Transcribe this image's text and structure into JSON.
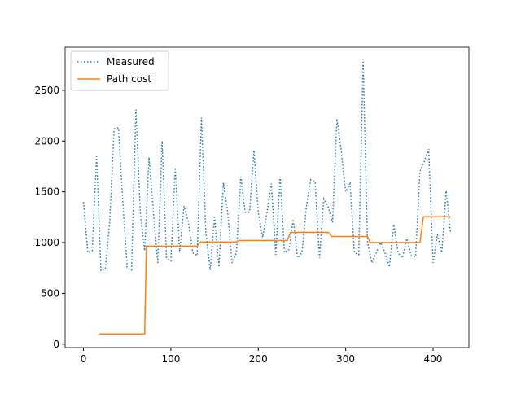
{
  "chart_data": {
    "type": "line",
    "xlim": [
      -21,
      441
    ],
    "xticks": [
      0,
      100,
      200,
      300,
      400
    ],
    "ylim": [
      -34,
      2924
    ],
    "yticks": [
      0,
      500,
      1000,
      1500,
      2000,
      2500
    ],
    "legend": "upper left",
    "series": [
      {
        "name": "Measured",
        "color": "#1f77b4",
        "dash": "dotted",
        "x": [
          0,
          5,
          10,
          15,
          20,
          25,
          30,
          35,
          40,
          45,
          50,
          55,
          60,
          65,
          70,
          75,
          80,
          85,
          90,
          95,
          100,
          105,
          110,
          115,
          120,
          125,
          130,
          135,
          140,
          145,
          150,
          155,
          160,
          165,
          170,
          175,
          180,
          185,
          190,
          195,
          200,
          205,
          210,
          215,
          220,
          225,
          230,
          235,
          240,
          245,
          250,
          255,
          260,
          265,
          270,
          275,
          280,
          285,
          290,
          295,
          300,
          305,
          310,
          315,
          320,
          325,
          330,
          335,
          340,
          345,
          350,
          355,
          360,
          365,
          370,
          375,
          380,
          385,
          390,
          395,
          400,
          405,
          410,
          415,
          420
        ],
        "values": [
          1400,
          900,
          920,
          1850,
          720,
          740,
          1200,
          2120,
          2130,
          1400,
          750,
          730,
          2310,
          1300,
          920,
          1840,
          1300,
          800,
          2000,
          850,
          820,
          1740,
          900,
          1360,
          1200,
          900,
          870,
          2230,
          1100,
          730,
          1250,
          760,
          1590,
          1300,
          800,
          900,
          1650,
          1300,
          1300,
          1910,
          1300,
          1050,
          1300,
          1580,
          880,
          1650,
          900,
          930,
          1230,
          850,
          900,
          1350,
          1620,
          1600,
          850,
          1430,
          1350,
          1200,
          2220,
          1900,
          1500,
          1580,
          900,
          880,
          2790,
          1000,
          800,
          900,
          1000,
          900,
          760,
          1180,
          900,
          850,
          1040,
          870,
          860,
          1700,
          1800,
          1920,
          800,
          1080,
          900,
          1510,
          1100
        ]
      },
      {
        "name": "Path cost",
        "color": "#ff7f0e",
        "dash": "solid",
        "x": [
          18,
          70,
          72,
          130,
          134,
          174,
          178,
          233,
          237,
          280,
          284,
          325,
          328,
          385,
          389,
          420
        ],
        "values": [
          100,
          100,
          965,
          965,
          1005,
          1005,
          1020,
          1020,
          1100,
          1100,
          1060,
          1060,
          1000,
          1000,
          1255,
          1255
        ]
      }
    ]
  }
}
